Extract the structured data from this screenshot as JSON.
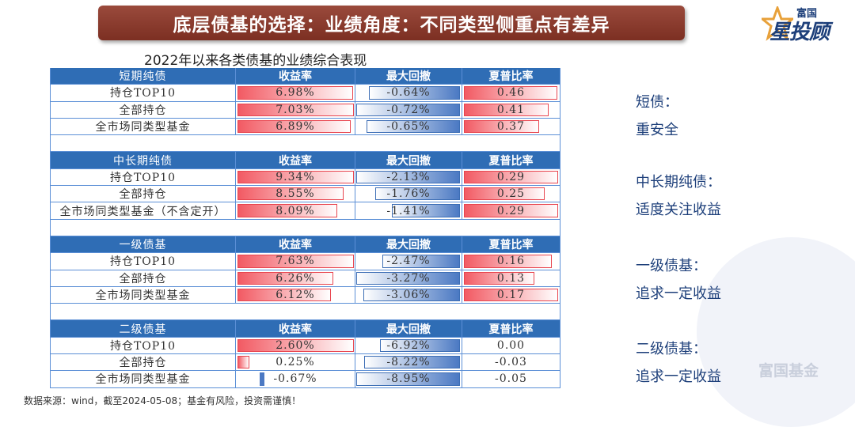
{
  "title": "底层债基的选择：业绩角度：不同类型侧重点有差异",
  "logo": {
    "small": "富国",
    "big": "星投顾"
  },
  "table_title": "2022年以来各类债基的业绩综合表现",
  "colors": {
    "header": "#2f6db5",
    "red_bar": "#f25a63",
    "blue_bar": "#4b79c3",
    "side_text": "#1d3f7a"
  },
  "sections": [
    {
      "header": [
        "短期纯债",
        "收益率",
        "最大回撤",
        "夏普比率"
      ],
      "rows": [
        {
          "label": "持仓TOP10",
          "ret": "6.98%",
          "dd": "-0.64%",
          "sharpe": "0.46",
          "ret_frac": 0.99,
          "dd_frac": 0.88,
          "sh_frac": 0.99
        },
        {
          "label": "全部持仓",
          "ret": "7.03%",
          "dd": "-0.72%",
          "sharpe": "0.41",
          "ret_frac": 1.0,
          "dd_frac": 1.0,
          "sh_frac": 0.9
        },
        {
          "label": "全市场同类型基金",
          "ret": "6.89%",
          "dd": "-0.65%",
          "sharpe": "0.37",
          "ret_frac": 0.97,
          "dd_frac": 0.9,
          "sh_frac": 0.8
        }
      ]
    },
    {
      "header": [
        "中长期纯债",
        "收益率",
        "最大回撤",
        "夏普比率"
      ],
      "rows": [
        {
          "label": "持仓TOP10",
          "ret": "9.34%",
          "dd": "-2.13%",
          "sharpe": "0.29",
          "ret_frac": 1.0,
          "dd_frac": 1.0,
          "sh_frac": 1.0
        },
        {
          "label": "全部持仓",
          "ret": "8.55%",
          "dd": "-1.76%",
          "sharpe": "0.25",
          "ret_frac": 0.91,
          "dd_frac": 0.82,
          "sh_frac": 0.86
        },
        {
          "label": "全市场同类型基金（不含定开）",
          "ret": "8.09%",
          "dd": "-1.41%",
          "sharpe": "0.29",
          "ret_frac": 0.86,
          "dd_frac": 0.66,
          "sh_frac": 1.0
        }
      ]
    },
    {
      "header": [
        "一级债基",
        "收益率",
        "最大回撤",
        "夏普比率"
      ],
      "rows": [
        {
          "label": "持仓TOP10",
          "ret": "7.63%",
          "dd": "-2.47%",
          "sharpe": "0.16",
          "ret_frac": 1.0,
          "dd_frac": 0.75,
          "sh_frac": 0.93
        },
        {
          "label": "全部持仓",
          "ret": "6.26%",
          "dd": "-3.27%",
          "sharpe": "0.13",
          "ret_frac": 0.82,
          "dd_frac": 1.0,
          "sh_frac": 0.75
        },
        {
          "label": "全市场同类型基金",
          "ret": "6.12%",
          "dd": "-3.06%",
          "sharpe": "0.17",
          "ret_frac": 0.8,
          "dd_frac": 0.93,
          "sh_frac": 1.0
        }
      ]
    },
    {
      "header": [
        "二级债基",
        "收益率",
        "最大回撤",
        "夏普比率"
      ],
      "rows": [
        {
          "label": "持仓TOP10",
          "ret": "2.60%",
          "dd": "-6.92%",
          "sharpe": "0.00",
          "ret_frac": 1.0,
          "dd_frac": 0.77,
          "sh_frac": 0.0
        },
        {
          "label": "全部持仓",
          "ret": "0.25%",
          "dd": "-8.22%",
          "sharpe": "-0.03",
          "ret_frac": 0.1,
          "dd_frac": 0.92,
          "sh_frac": -0.6
        },
        {
          "label": "全市场同类型基金",
          "ret": "-0.67%",
          "dd": "-8.95%",
          "sharpe": "-0.05",
          "ret_frac": -0.26,
          "dd_frac": 1.0,
          "sh_frac": -1.0
        }
      ]
    }
  ],
  "side_notes": [
    {
      "title": "短债：",
      "desc": "重安全"
    },
    {
      "title": "中长期纯债：",
      "desc": "适度关注收益"
    },
    {
      "title": "一级债基：",
      "desc": "追求一定收益"
    },
    {
      "title": "二级债基：",
      "desc": "追求一定收益"
    }
  ],
  "watermark": "富国基金",
  "source": "数据来源：wind，截至2024-05-08；基金有风险，投资需谨慎！"
}
